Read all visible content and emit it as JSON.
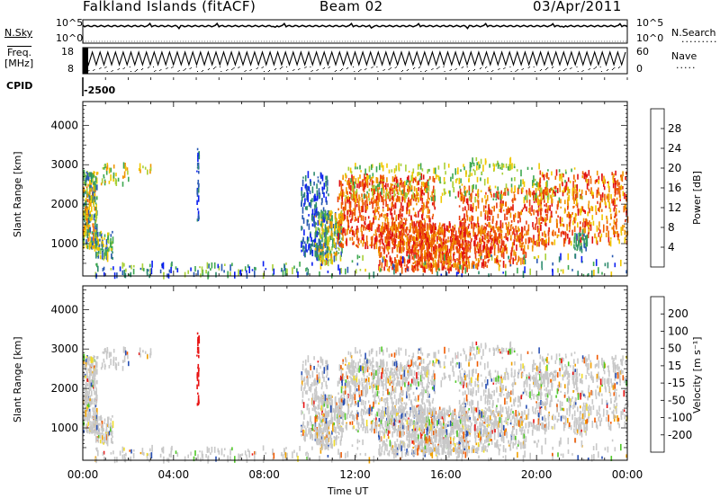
{
  "header": {
    "station": "Falkland Islands (fitACF)",
    "beam": "Beam 02",
    "date": "03/Apr/2011"
  },
  "labels": {
    "nsky": "N.Sky",
    "freq_line1": "Freq.",
    "freq_line2": "[MHz]",
    "cpid": "CPID",
    "cpid_value": "-2500",
    "nsearch": "N.Search",
    "nave": "Nave",
    "nsky_top": "10^5",
    "nsky_bottom": "10^0",
    "nsearch_top": "10^5",
    "nsearch_bottom": "10^0",
    "freq_top": "18",
    "freq_bottom": "8",
    "nave_top": "60",
    "nave_bottom": "0"
  },
  "colors": {
    "power_scale": [
      "#0a1ef0",
      "#2a5ab4",
      "#2e8c6e",
      "#3ea850",
      "#a8d038",
      "#f0c800",
      "#f09600",
      "#f06400",
      "#e83c10",
      "#e01010"
    ],
    "velocity_scale": [
      "#e81414",
      "#f05a00",
      "#f0a000",
      "#f0dc28",
      "#c8c8c8",
      "#c8c8c8",
      "#50c828",
      "#2e8c50",
      "#2850b4",
      "#1414c8"
    ]
  },
  "chart_data": [
    {
      "type": "line",
      "name": "nsky-panel",
      "ylabel_left": "N.Sky",
      "ylabel_right": "N.Search",
      "y_ticks": [
        "10^0",
        "10^5"
      ],
      "series": [
        {
          "name": "N.Sky",
          "level": 0.85
        },
        {
          "name": "N.Search",
          "level": 0.0
        }
      ]
    },
    {
      "type": "line",
      "name": "freq-panel",
      "ylabel_left": "Freq. [MHz]",
      "ylabel_right": "Nave",
      "ylim_left": [
        8,
        18
      ],
      "ylim_right": [
        0,
        60
      ],
      "series": [
        {
          "name": "Freq.",
          "range": [
            11.5,
            16.5
          ]
        },
        {
          "name": "Nave",
          "range": [
            20,
            55
          ]
        }
      ]
    },
    {
      "type": "heatmap",
      "name": "power-panel",
      "xlabel": "",
      "ylabel": "Slant Range [km]",
      "x_ticks": [
        "00:00",
        "04:00",
        "08:00",
        "12:00",
        "16:00",
        "20:00",
        "00:00"
      ],
      "x_range_hours": [
        0,
        24
      ],
      "ylim": [
        180,
        4600
      ],
      "y_ticks": [
        1000,
        2000,
        3000,
        4000
      ],
      "colorbar": {
        "label": "Power [dB]",
        "range": [
          0,
          32
        ],
        "ticks": [
          "4",
          "8",
          "12",
          "16",
          "20",
          "24",
          "28"
        ]
      }
    },
    {
      "type": "heatmap",
      "name": "velocity-panel",
      "xlabel": "Time UT",
      "ylabel": "Slant Range [km]",
      "x_ticks": [
        "00:00",
        "04:00",
        "08:00",
        "12:00",
        "16:00",
        "20:00",
        "00:00"
      ],
      "x_range_hours": [
        0,
        24
      ],
      "ylim": [
        180,
        4600
      ],
      "y_ticks": [
        1000,
        2000,
        3000,
        4000
      ],
      "colorbar": {
        "label": "Velocity [m s⁻¹]",
        "ticks": [
          "-200",
          "-100",
          "-50",
          "-15",
          "15",
          "50",
          "100",
          "200"
        ]
      }
    }
  ]
}
